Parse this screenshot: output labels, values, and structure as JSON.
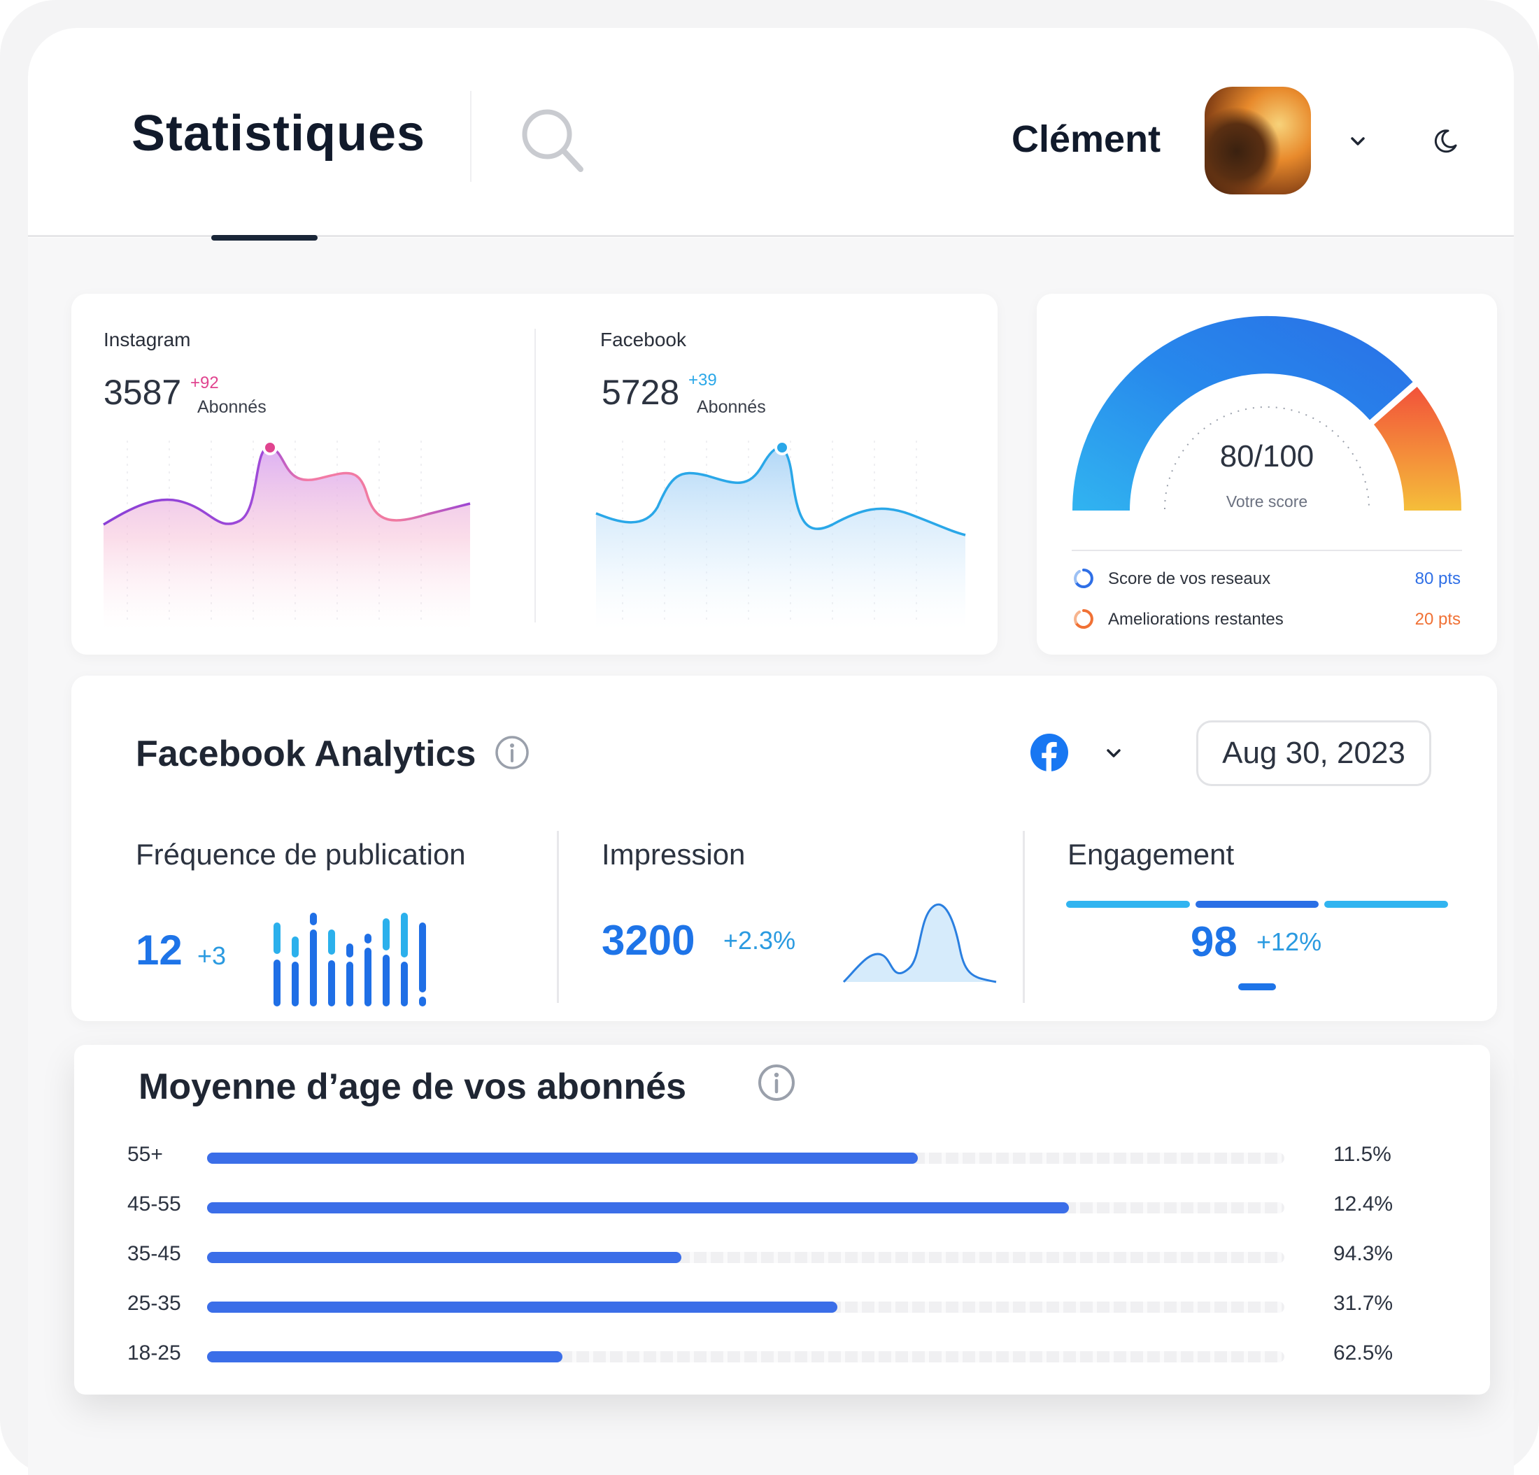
{
  "header": {
    "title": "Statistiques",
    "user_name": "Clément"
  },
  "social": {
    "instagram": {
      "label": "Instagram",
      "followers": "3587",
      "delta": "+92",
      "unit": "Abonnés",
      "color": "#e0448f"
    },
    "facebook": {
      "label": "Facebook",
      "followers": "5728",
      "delta": "+39",
      "unit": "Abonnés",
      "color": "#2aa7e8"
    }
  },
  "score": {
    "value": "80/100",
    "label": "Votre score",
    "legend": [
      {
        "label": "Score de vos reseaux",
        "value": "80 pts",
        "color": "#2f6fe6"
      },
      {
        "label": "Ameliorations restantes",
        "value": "20 pts",
        "color": "#f07135"
      }
    ]
  },
  "facebook_analytics": {
    "title": "Facebook Analytics",
    "date": "Aug 30, 2023",
    "metrics": [
      {
        "label": "Fréquence de publication",
        "value": "12",
        "delta": "+3"
      },
      {
        "label": "Impression",
        "value": "3200",
        "delta": "+2.3%"
      },
      {
        "label": "Engagement",
        "value": "98",
        "delta": "+12%"
      }
    ]
  },
  "age": {
    "title": "Moyenne d’age de vos abonnés",
    "rows": [
      {
        "label": "55+",
        "value": "11.5%",
        "fill": 0.66
      },
      {
        "label": "45-55",
        "value": "12.4%",
        "fill": 0.8
      },
      {
        "label": "35-45",
        "value": "94.3%",
        "fill": 0.44
      },
      {
        "label": "25-35",
        "value": "31.7%",
        "fill": 0.585
      },
      {
        "label": "18-25",
        "value": "62.5%",
        "fill": 0.33
      }
    ]
  },
  "icons": {
    "search": "search-icon",
    "chevron": "chevron-down-icon",
    "theme": "moon-icon",
    "info": "info-icon",
    "facebook": "facebook-logo-icon"
  }
}
